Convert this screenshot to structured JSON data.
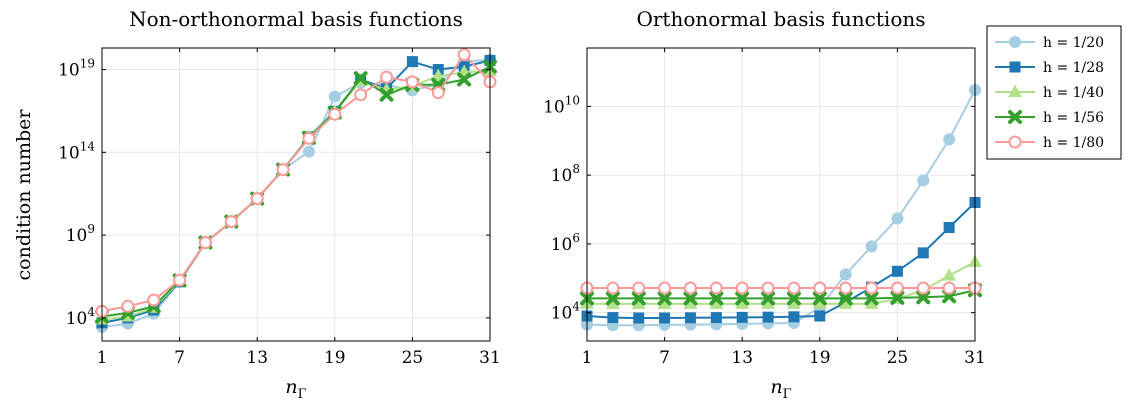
{
  "colors": {
    "h20": "#a6cee3",
    "h28": "#1f78b4",
    "h40": "#b2df8a",
    "h56": "#33a02c",
    "h80": "#fb9a99",
    "grid": "#e6e6e6"
  },
  "chart_data": [
    {
      "type": "line",
      "title": "Non-orthonormal basis functions",
      "xlabel": "n",
      "xlabel_sub": "Γ",
      "ylabel": "condition number",
      "x": [
        1,
        3,
        5,
        7,
        9,
        11,
        13,
        15,
        17,
        19,
        21,
        23,
        25,
        27,
        29,
        31
      ],
      "xticks": [
        "1",
        "7",
        "13",
        "19",
        "25",
        "31"
      ],
      "xtick_values": [
        1,
        7,
        13,
        19,
        25,
        31
      ],
      "xlim": [
        1,
        31
      ],
      "yscale": "log",
      "ylim": [
        400.0,
        2e+20
      ],
      "yticks": [
        {
          "value": 10000.0,
          "base": "10",
          "exp": "4"
        },
        {
          "value": 1000000000.0,
          "base": "10",
          "exp": "9"
        },
        {
          "value": 100000000000000.0,
          "base": "10",
          "exp": "14"
        },
        {
          "value": 1e+19,
          "base": "10",
          "exp": "19"
        }
      ],
      "grid": true,
      "series": [
        {
          "name": "h = 1/20",
          "color_key": "h20",
          "marker": "circle",
          "values": [
            2800.0,
            4500.0,
            18000.0,
            1500000.0,
            350000000.0,
            6500000000.0,
            160000000000.0,
            9000000000000.0,
            110000000000000.0,
            2.3e+17,
            1.6e+18,
            1.2e+18,
            5.5e+17,
            1.3e+18,
            3e+19,
            4e+19
          ]
        },
        {
          "name": "h = 1/28",
          "color_key": "h28",
          "marker": "square",
          "values": [
            5000.0,
            10000.0,
            30000.0,
            1500000.0,
            350000000.0,
            6500000000.0,
            160000000000.0,
            9000000000000.0,
            850000000000000.0,
            3e+16,
            2.5e+18,
            7e+17,
            3e+19,
            1e+19,
            1.5e+19,
            3.5e+19
          ]
        },
        {
          "name": "h = 1/40",
          "color_key": "h40",
          "marker": "triangle",
          "values": [
            8000.0,
            12000.0,
            40000.0,
            1600000.0,
            350000000.0,
            6500000000.0,
            160000000000.0,
            9000000000000.0,
            800000000000000.0,
            2.8e+16,
            2e+18,
            6e+17,
            1e+18,
            4e+18,
            7e+18,
            8e+18
          ]
        },
        {
          "name": "h = 1/56",
          "color_key": "h56",
          "marker": "cross",
          "values": [
            12000.0,
            20000.0,
            50000.0,
            1800000.0,
            350000000.0,
            6500000000.0,
            160000000000.0,
            9000000000000.0,
            750000000000000.0,
            2.5e+16,
            3e+18,
            3e+17,
            1.2e+18,
            1.2e+18,
            2.5e+18,
            1.5e+19
          ]
        },
        {
          "name": "h = 1/80",
          "color_key": "h80",
          "marker": "circle-open",
          "values": [
            25000.0,
            50000.0,
            120000.0,
            1900000.0,
            350000000.0,
            6500000000.0,
            160000000000.0,
            9000000000000.0,
            700000000000000.0,
            2e+16,
            3e+17,
            3.5e+18,
            1.8e+18,
            4e+17,
            8e+19,
            1.8e+18
          ]
        }
      ]
    },
    {
      "type": "line",
      "title": "Orthonormal basis functions",
      "xlabel": "n",
      "xlabel_sub": "Γ",
      "ylabel": "",
      "x": [
        1,
        3,
        5,
        7,
        9,
        11,
        13,
        15,
        17,
        19,
        21,
        23,
        25,
        27,
        29,
        31
      ],
      "xticks": [
        "1",
        "7",
        "13",
        "19",
        "25",
        "31"
      ],
      "xtick_values": [
        1,
        7,
        13,
        19,
        25,
        31
      ],
      "xlim": [
        1,
        31
      ],
      "yscale": "log",
      "ylim": [
        1500.0,
        500000000000.0
      ],
      "yticks": [
        {
          "value": 10000.0,
          "base": "10",
          "exp": "4"
        },
        {
          "value": 1000000.0,
          "base": "10",
          "exp": "6"
        },
        {
          "value": 100000000.0,
          "base": "10",
          "exp": "8"
        },
        {
          "value": 10000000000.0,
          "base": "10",
          "exp": "10"
        }
      ],
      "grid": true,
      "legend": {
        "placement": "outside-right",
        "entries": [
          {
            "text": "h = 1/20",
            "color_key": "h20",
            "marker": "circle"
          },
          {
            "text": "h = 1/28",
            "color_key": "h28",
            "marker": "square"
          },
          {
            "text": "h = 1/40",
            "color_key": "h40",
            "marker": "triangle"
          },
          {
            "text": "h = 1/56",
            "color_key": "h56",
            "marker": "cross"
          },
          {
            "text": "h = 1/80",
            "color_key": "h80",
            "marker": "circle-open"
          }
        ]
      },
      "series": [
        {
          "name": "h = 1/20",
          "color_key": "h20",
          "marker": "circle",
          "values": [
            4500.0,
            4300.0,
            4300.0,
            4400.0,
            4500.0,
            4600.0,
            4700.0,
            4900.0,
            5000.0,
            14000.0,
            130000.0,
            850000.0,
            5500000.0,
            70000000.0,
            1100000000.0,
            30000000000.0
          ]
        },
        {
          "name": "h = 1/28",
          "color_key": "h28",
          "marker": "square",
          "values": [
            8000.0,
            7200.0,
            7000.0,
            7000.0,
            7100.0,
            7200.0,
            7300.0,
            7400.0,
            7600.0,
            8000.0,
            20000.0,
            55000.0,
            160000.0,
            550000.0,
            3000000.0,
            16000000.0
          ]
        },
        {
          "name": "h = 1/40",
          "color_key": "h40",
          "marker": "triangle",
          "values": [
            18000.0,
            18000.0,
            18000.0,
            18000.0,
            18000.0,
            18000.0,
            18000.0,
            18000.0,
            18000.0,
            18000.0,
            18000.0,
            18000.0,
            25000.0,
            45000.0,
            120000.0,
            300000.0
          ]
        },
        {
          "name": "h = 1/56",
          "color_key": "h56",
          "marker": "cross",
          "values": [
            26000.0,
            26000.0,
            26000.0,
            26000.0,
            26000.0,
            26000.0,
            26000.0,
            26000.0,
            26000.0,
            26000.0,
            26000.0,
            26000.0,
            27000.0,
            28000.0,
            30000.0,
            45000.0
          ]
        },
        {
          "name": "h = 1/80",
          "color_key": "h80",
          "marker": "circle-open",
          "values": [
            52000.0,
            52000.0,
            52000.0,
            52000.0,
            52000.0,
            52000.0,
            52000.0,
            52000.0,
            52000.0,
            52000.0,
            52000.0,
            52000.0,
            52000.0,
            52000.0,
            52000.0,
            52000.0
          ]
        }
      ]
    }
  ]
}
